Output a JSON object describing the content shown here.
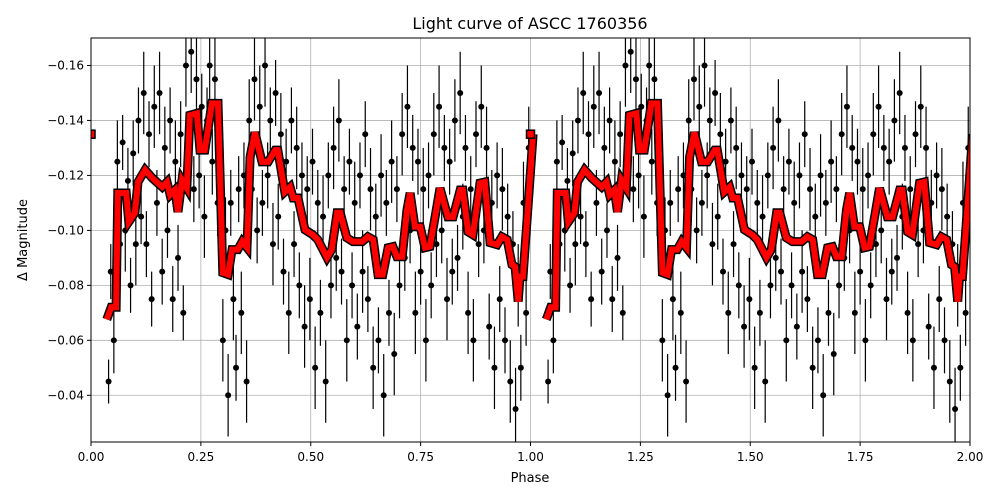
{
  "chart_data": {
    "type": "scatter",
    "title": "Light curve of ASCC 1760356",
    "xlabel": "Phase",
    "ylabel": "Δ Magnitude",
    "xlim": [
      0,
      2
    ],
    "ylim": [
      -0.17,
      -0.023
    ],
    "y_inverted": true,
    "grid": true,
    "phase_copies": [
      0,
      1
    ],
    "xticks": [
      "0.00",
      "0.25",
      "0.50",
      "0.75",
      "1.00",
      "1.25",
      "1.50",
      "1.75",
      "2.00"
    ],
    "xtick_values": [
      0,
      0.25,
      0.5,
      0.75,
      1.0,
      1.25,
      1.5,
      1.75,
      2.0
    ],
    "yticks": [
      "−0.16",
      "−0.14",
      "−0.12",
      "−0.10",
      "−0.08",
      "−0.06",
      "−0.04"
    ],
    "ytick_values": [
      -0.16,
      -0.14,
      -0.12,
      -0.1,
      -0.08,
      -0.06,
      -0.04
    ],
    "colors": {
      "points": "#000000",
      "binned_curve": "#ff0000",
      "curve_edge": "#000000",
      "grid": "#b0b0b0"
    },
    "observations": [
      [
        0.04,
        -0.045,
        0.008
      ],
      [
        0.045,
        -0.085,
        0.01
      ],
      [
        0.052,
        -0.06,
        0.012
      ],
      [
        0.06,
        -0.125,
        0.015
      ],
      [
        0.066,
        -0.095,
        0.012
      ],
      [
        0.072,
        -0.132,
        0.01
      ],
      [
        0.078,
        -0.1,
        0.015
      ],
      [
        0.084,
        -0.118,
        0.012
      ],
      [
        0.09,
        -0.08,
        0.01
      ],
      [
        0.096,
        -0.128,
        0.012
      ],
      [
        0.102,
        -0.095,
        0.015
      ],
      [
        0.108,
        -0.14,
        0.012
      ],
      [
        0.114,
        -0.105,
        0.01
      ],
      [
        0.12,
        -0.15,
        0.015
      ],
      [
        0.126,
        -0.095,
        0.012
      ],
      [
        0.132,
        -0.135,
        0.012
      ],
      [
        0.138,
        -0.075,
        0.01
      ],
      [
        0.144,
        -0.145,
        0.015
      ],
      [
        0.15,
        -0.11,
        0.012
      ],
      [
        0.156,
        -0.15,
        0.015
      ],
      [
        0.162,
        -0.085,
        0.012
      ],
      [
        0.168,
        -0.13,
        0.015
      ],
      [
        0.174,
        -0.1,
        0.01
      ],
      [
        0.18,
        -0.14,
        0.012
      ],
      [
        0.186,
        -0.075,
        0.012
      ],
      [
        0.192,
        -0.125,
        0.015
      ],
      [
        0.198,
        -0.09,
        0.012
      ],
      [
        0.204,
        -0.135,
        0.012
      ],
      [
        0.21,
        -0.07,
        0.01
      ],
      [
        0.216,
        -0.16,
        0.015
      ],
      [
        0.222,
        -0.13,
        0.012
      ],
      [
        0.228,
        -0.165,
        0.015
      ],
      [
        0.234,
        -0.115,
        0.012
      ],
      [
        0.24,
        -0.155,
        0.015
      ],
      [
        0.246,
        -0.12,
        0.012
      ],
      [
        0.252,
        -0.145,
        0.012
      ],
      [
        0.258,
        -0.105,
        0.015
      ],
      [
        0.264,
        -0.14,
        0.012
      ],
      [
        0.27,
        -0.16,
        0.015
      ],
      [
        0.276,
        -0.125,
        0.012
      ],
      [
        0.282,
        -0.155,
        0.015
      ],
      [
        0.288,
        -0.11,
        0.012
      ],
      [
        0.294,
        -0.135,
        0.012
      ],
      [
        0.3,
        -0.06,
        0.015
      ],
      [
        0.306,
        -0.1,
        0.012
      ],
      [
        0.312,
        -0.04,
        0.015
      ],
      [
        0.318,
        -0.11,
        0.012
      ],
      [
        0.324,
        -0.075,
        0.015
      ],
      [
        0.33,
        -0.05,
        0.012
      ],
      [
        0.336,
        -0.115,
        0.012
      ],
      [
        0.342,
        -0.07,
        0.015
      ],
      [
        0.348,
        -0.12,
        0.012
      ],
      [
        0.354,
        -0.045,
        0.015
      ],
      [
        0.36,
        -0.14,
        0.015
      ],
      [
        0.366,
        -0.115,
        0.012
      ],
      [
        0.372,
        -0.155,
        0.015
      ],
      [
        0.378,
        -0.1,
        0.012
      ],
      [
        0.384,
        -0.145,
        0.015
      ],
      [
        0.39,
        -0.11,
        0.012
      ],
      [
        0.396,
        -0.16,
        0.015
      ],
      [
        0.402,
        -0.12,
        0.012
      ],
      [
        0.408,
        -0.14,
        0.012
      ],
      [
        0.414,
        -0.095,
        0.015
      ],
      [
        0.42,
        -0.15,
        0.012
      ],
      [
        0.426,
        -0.105,
        0.012
      ],
      [
        0.432,
        -0.135,
        0.015
      ],
      [
        0.438,
        -0.085,
        0.012
      ],
      [
        0.444,
        -0.125,
        0.012
      ],
      [
        0.45,
        -0.07,
        0.015
      ],
      [
        0.456,
        -0.14,
        0.012
      ],
      [
        0.462,
        -0.095,
        0.012
      ],
      [
        0.468,
        -0.13,
        0.015
      ],
      [
        0.474,
        -0.08,
        0.012
      ],
      [
        0.48,
        -0.12,
        0.012
      ],
      [
        0.486,
        -0.065,
        0.015
      ],
      [
        0.492,
        -0.115,
        0.012
      ],
      [
        0.498,
        -0.075,
        0.015
      ],
      [
        0.504,
        -0.125,
        0.012
      ],
      [
        0.51,
        -0.05,
        0.015
      ],
      [
        0.516,
        -0.11,
        0.012
      ],
      [
        0.522,
        -0.07,
        0.012
      ],
      [
        0.528,
        -0.105,
        0.015
      ],
      [
        0.534,
        -0.045,
        0.015
      ],
      [
        0.54,
        -0.12,
        0.012
      ],
      [
        0.546,
        -0.08,
        0.012
      ],
      [
        0.552,
        -0.13,
        0.015
      ],
      [
        0.558,
        -0.09,
        0.012
      ],
      [
        0.564,
        -0.14,
        0.015
      ],
      [
        0.57,
        -0.085,
        0.012
      ],
      [
        0.576,
        -0.115,
        0.012
      ],
      [
        0.582,
        -0.06,
        0.015
      ],
      [
        0.588,
        -0.125,
        0.012
      ],
      [
        0.594,
        -0.08,
        0.012
      ],
      [
        0.6,
        -0.11,
        0.015
      ],
      [
        0.606,
        -0.065,
        0.012
      ],
      [
        0.612,
        -0.12,
        0.012
      ],
      [
        0.618,
        -0.085,
        0.015
      ],
      [
        0.624,
        -0.135,
        0.012
      ],
      [
        0.63,
        -0.075,
        0.012
      ],
      [
        0.636,
        -0.115,
        0.015
      ],
      [
        0.642,
        -0.05,
        0.015
      ],
      [
        0.648,
        -0.105,
        0.012
      ],
      [
        0.654,
        -0.06,
        0.012
      ],
      [
        0.66,
        -0.12,
        0.015
      ],
      [
        0.666,
        -0.04,
        0.015
      ],
      [
        0.672,
        -0.11,
        0.012
      ],
      [
        0.678,
        -0.07,
        0.012
      ],
      [
        0.684,
        -0.125,
        0.015
      ],
      [
        0.69,
        -0.055,
        0.015
      ],
      [
        0.696,
        -0.115,
        0.012
      ],
      [
        0.702,
        -0.08,
        0.012
      ],
      [
        0.708,
        -0.135,
        0.015
      ],
      [
        0.714,
        -0.09,
        0.012
      ],
      [
        0.72,
        -0.145,
        0.015
      ],
      [
        0.726,
        -0.1,
        0.012
      ],
      [
        0.732,
        -0.13,
        0.012
      ],
      [
        0.738,
        -0.07,
        0.015
      ],
      [
        0.744,
        -0.125,
        0.012
      ],
      [
        0.75,
        -0.085,
        0.012
      ],
      [
        0.756,
        -0.115,
        0.015
      ],
      [
        0.762,
        -0.06,
        0.015
      ],
      [
        0.768,
        -0.12,
        0.012
      ],
      [
        0.774,
        -0.08,
        0.012
      ],
      [
        0.78,
        -0.135,
        0.015
      ],
      [
        0.786,
        -0.095,
        0.012
      ],
      [
        0.792,
        -0.145,
        0.015
      ],
      [
        0.798,
        -0.1,
        0.012
      ],
      [
        0.804,
        -0.13,
        0.012
      ],
      [
        0.81,
        -0.075,
        0.015
      ],
      [
        0.816,
        -0.125,
        0.012
      ],
      [
        0.822,
        -0.085,
        0.012
      ],
      [
        0.828,
        -0.14,
        0.015
      ],
      [
        0.834,
        -0.09,
        0.012
      ],
      [
        0.84,
        -0.15,
        0.015
      ],
      [
        0.846,
        -0.105,
        0.012
      ],
      [
        0.852,
        -0.13,
        0.012
      ],
      [
        0.858,
        -0.07,
        0.015
      ],
      [
        0.864,
        -0.115,
        0.012
      ],
      [
        0.87,
        -0.06,
        0.015
      ],
      [
        0.876,
        -0.135,
        0.012
      ],
      [
        0.882,
        -0.095,
        0.012
      ],
      [
        0.888,
        -0.145,
        0.015
      ],
      [
        0.894,
        -0.1,
        0.012
      ],
      [
        0.9,
        -0.13,
        0.015
      ],
      [
        0.906,
        -0.065,
        0.012
      ],
      [
        0.912,
        -0.11,
        0.012
      ],
      [
        0.918,
        -0.05,
        0.015
      ],
      [
        0.924,
        -0.12,
        0.012
      ],
      [
        0.93,
        -0.075,
        0.012
      ],
      [
        0.936,
        -0.115,
        0.015
      ],
      [
        0.942,
        -0.06,
        0.012
      ],
      [
        0.948,
        -0.105,
        0.012
      ],
      [
        0.954,
        -0.045,
        0.015
      ],
      [
        0.96,
        -0.095,
        0.012
      ],
      [
        0.966,
        -0.035,
        0.015
      ],
      [
        0.972,
        -0.08,
        0.015
      ],
      [
        0.978,
        -0.05,
        0.012
      ],
      [
        0.984,
        -0.11,
        0.015
      ],
      [
        0.99,
        -0.07,
        0.012
      ],
      [
        0.996,
        -0.13,
        0.015
      ]
    ],
    "binned_start": [
      0.0,
      -0.135
    ],
    "binned_curve": [
      [
        0.036,
        -0.0676
      ],
      [
        0.046,
        -0.072
      ],
      [
        0.057,
        -0.072
      ],
      [
        0.061,
        -0.1136
      ],
      [
        0.08,
        -0.1136
      ],
      [
        0.086,
        -0.1031
      ],
      [
        0.1,
        -0.1064
      ],
      [
        0.107,
        -0.1176
      ],
      [
        0.123,
        -0.122
      ],
      [
        0.139,
        -0.1191
      ],
      [
        0.162,
        -0.1158
      ],
      [
        0.173,
        -0.1176
      ],
      [
        0.18,
        -0.1129
      ],
      [
        0.191,
        -0.1147
      ],
      [
        0.198,
        -0.1067
      ],
      [
        0.207,
        -0.1183
      ],
      [
        0.218,
        -0.1154
      ],
      [
        0.225,
        -0.1419
      ],
      [
        0.241,
        -0.1426
      ],
      [
        0.248,
        -0.1292
      ],
      [
        0.259,
        -0.1292
      ],
      [
        0.275,
        -0.1462
      ],
      [
        0.289,
        -0.1462
      ],
      [
        0.3,
        -0.0846
      ],
      [
        0.312,
        -0.0839
      ],
      [
        0.321,
        -0.093
      ],
      [
        0.334,
        -0.093
      ],
      [
        0.344,
        -0.0959
      ],
      [
        0.355,
        -0.0937
      ],
      [
        0.362,
        -0.1267
      ],
      [
        0.373,
        -0.1357
      ],
      [
        0.389,
        -0.1249
      ],
      [
        0.403,
        -0.1249
      ],
      [
        0.419,
        -0.1292
      ],
      [
        0.425,
        -0.1292
      ],
      [
        0.441,
        -0.114
      ],
      [
        0.453,
        -0.1158
      ],
      [
        0.46,
        -0.1118
      ],
      [
        0.471,
        -0.1118
      ],
      [
        0.487,
        -0.1002
      ],
      [
        0.505,
        -0.0984
      ],
      [
        0.516,
        -0.0966
      ],
      [
        0.537,
        -0.0901
      ],
      [
        0.548,
        -0.093
      ],
      [
        0.56,
        -0.1064
      ],
      [
        0.567,
        -0.1064
      ],
      [
        0.582,
        -0.0973
      ],
      [
        0.596,
        -0.0959
      ],
      [
        0.617,
        -0.0959
      ],
      [
        0.63,
        -0.0977
      ],
      [
        0.642,
        -0.0966
      ],
      [
        0.653,
        -0.0839
      ],
      [
        0.664,
        -0.0839
      ],
      [
        0.676,
        -0.0937
      ],
      [
        0.687,
        -0.0941
      ],
      [
        0.696,
        -0.0904
      ],
      [
        0.708,
        -0.0904
      ],
      [
        0.719,
        -0.1075
      ],
      [
        0.726,
        -0.1136
      ],
      [
        0.737,
        -0.1013
      ],
      [
        0.749,
        -0.1013
      ],
      [
        0.76,
        -0.0937
      ],
      [
        0.771,
        -0.0941
      ],
      [
        0.783,
        -0.1049
      ],
      [
        0.794,
        -0.1154
      ],
      [
        0.812,
        -0.1049
      ],
      [
        0.824,
        -0.1049
      ],
      [
        0.84,
        -0.1147
      ],
      [
        0.846,
        -0.1147
      ],
      [
        0.858,
        -0.0995
      ],
      [
        0.869,
        -0.0984
      ],
      [
        0.885,
        -0.1172
      ],
      [
        0.896,
        -0.1176
      ],
      [
        0.908,
        -0.0955
      ],
      [
        0.924,
        -0.0948
      ],
      [
        0.935,
        -0.0977
      ],
      [
        0.947,
        -0.0966
      ],
      [
        0.958,
        -0.0875
      ],
      [
        0.965,
        -0.0868
      ],
      [
        0.972,
        -0.0741
      ],
      [
        0.976,
        -0.0832
      ],
      [
        0.983,
        -0.0832
      ],
      [
        0.999,
        -0.1194
      ],
      [
        1.006,
        -0.135
      ]
    ]
  }
}
